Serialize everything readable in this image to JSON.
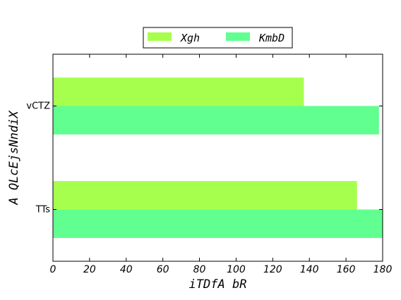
{
  "chart_data": {
    "type": "bar",
    "orientation": "horizontal",
    "categories": [
      "TTs",
      "vCTZ"
    ],
    "series": [
      {
        "name": "Xgh",
        "values": [
          166,
          137
        ],
        "color": "#a6ff4d"
      },
      {
        "name": "KmbD",
        "values": [
          180,
          178
        ],
        "color": "#61ff8f"
      }
    ],
    "xlabel": "iTDfA bR",
    "ylabel": "A QLcEjsNndiX",
    "xlim": [
      0,
      180
    ],
    "xticks": [
      0,
      20,
      40,
      60,
      80,
      100,
      120,
      140,
      160,
      180
    ],
    "grid": false,
    "legend_position": "top-center"
  }
}
